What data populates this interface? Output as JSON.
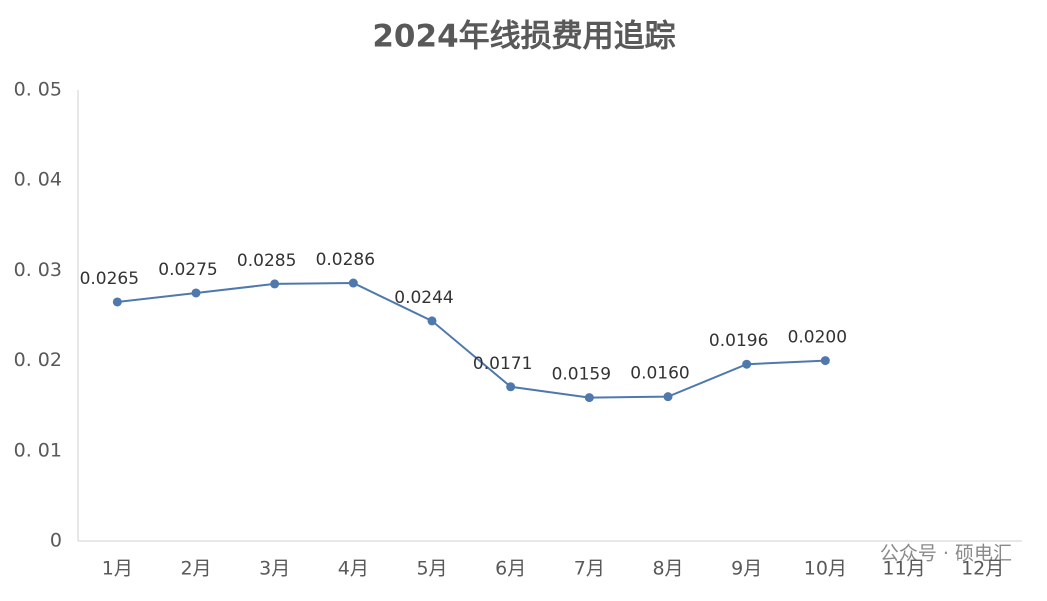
{
  "chart_data": {
    "type": "line",
    "title": "2024年线损费用追踪",
    "categories": [
      "1月",
      "2月",
      "3月",
      "4月",
      "5月",
      "6月",
      "7月",
      "8月",
      "9月",
      "10月",
      "11月",
      "12月"
    ],
    "series": [
      {
        "name": "线损费用",
        "color": "#4f79ad",
        "values": [
          0.0265,
          0.0275,
          0.0285,
          0.0286,
          0.0244,
          0.0171,
          0.0159,
          0.016,
          0.0196,
          0.02,
          null,
          null
        ],
        "value_labels": [
          "0.0265",
          "0.0275",
          "0.0285",
          "0.0286",
          "0.0244",
          "0.0171",
          "0.0159",
          "0.0160",
          "0.0196",
          "0.0200",
          null,
          null
        ]
      }
    ],
    "ylim": [
      0,
      0.05
    ],
    "yticks": [
      0,
      {
        "value": 0.01,
        "label": "0. 01"
      },
      {
        "value": 0.02,
        "label": "0. 02"
      },
      {
        "value": 0.03,
        "label": "0. 03"
      },
      {
        "value": 0.04,
        "label": "0. 04"
      },
      {
        "value": 0.05,
        "label": "0. 05"
      }
    ],
    "grid": false,
    "watermark": "公众号 · 硕电汇"
  }
}
